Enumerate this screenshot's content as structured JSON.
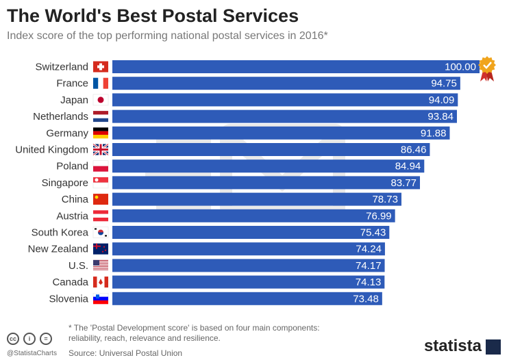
{
  "header": {
    "title": "The World's Best Postal Services",
    "subtitle": "Index score of the top performing national postal services in 2016*"
  },
  "footer": {
    "footnote": "* The 'Postal Development score' is based on four main components:\nreliability, reach, relevance and resilience.",
    "source": "Source: Universal Postal Union",
    "handle": "@StatistaCharts",
    "brand": "statista"
  },
  "colors": {
    "bar": "#2e5bb8",
    "label": "#ffffff",
    "badge": "#f0a41c"
  },
  "chart_data": {
    "type": "bar",
    "orientation": "horizontal",
    "categories": [
      "Switzerland",
      "France",
      "Japan",
      "Netherlands",
      "Germany",
      "United Kingdom",
      "Poland",
      "Singapore",
      "China",
      "Austria",
      "South Korea",
      "New Zealand",
      "U.S.",
      "Canada",
      "Slovenia"
    ],
    "values": [
      100.0,
      94.75,
      94.09,
      93.84,
      91.88,
      86.46,
      84.94,
      83.77,
      78.73,
      76.99,
      75.43,
      74.24,
      74.17,
      74.13,
      73.48
    ],
    "value_labels": [
      "100.00",
      "94.75",
      "94.09",
      "93.84",
      "91.88",
      "86.46",
      "84.94",
      "83.77",
      "78.73",
      "76.99",
      "75.43",
      "74.24",
      "74.17",
      "74.13",
      "73.48"
    ],
    "flags": [
      "switzerland-flag",
      "france-flag",
      "japan-flag",
      "netherlands-flag",
      "germany-flag",
      "uk-flag",
      "poland-flag",
      "singapore-flag",
      "china-flag",
      "austria-flag",
      "south-korea-flag",
      "new-zealand-flag",
      "us-flag",
      "canada-flag",
      "slovenia-flag"
    ],
    "xlim": [
      0,
      100
    ],
    "grid": false,
    "legend": "none"
  }
}
